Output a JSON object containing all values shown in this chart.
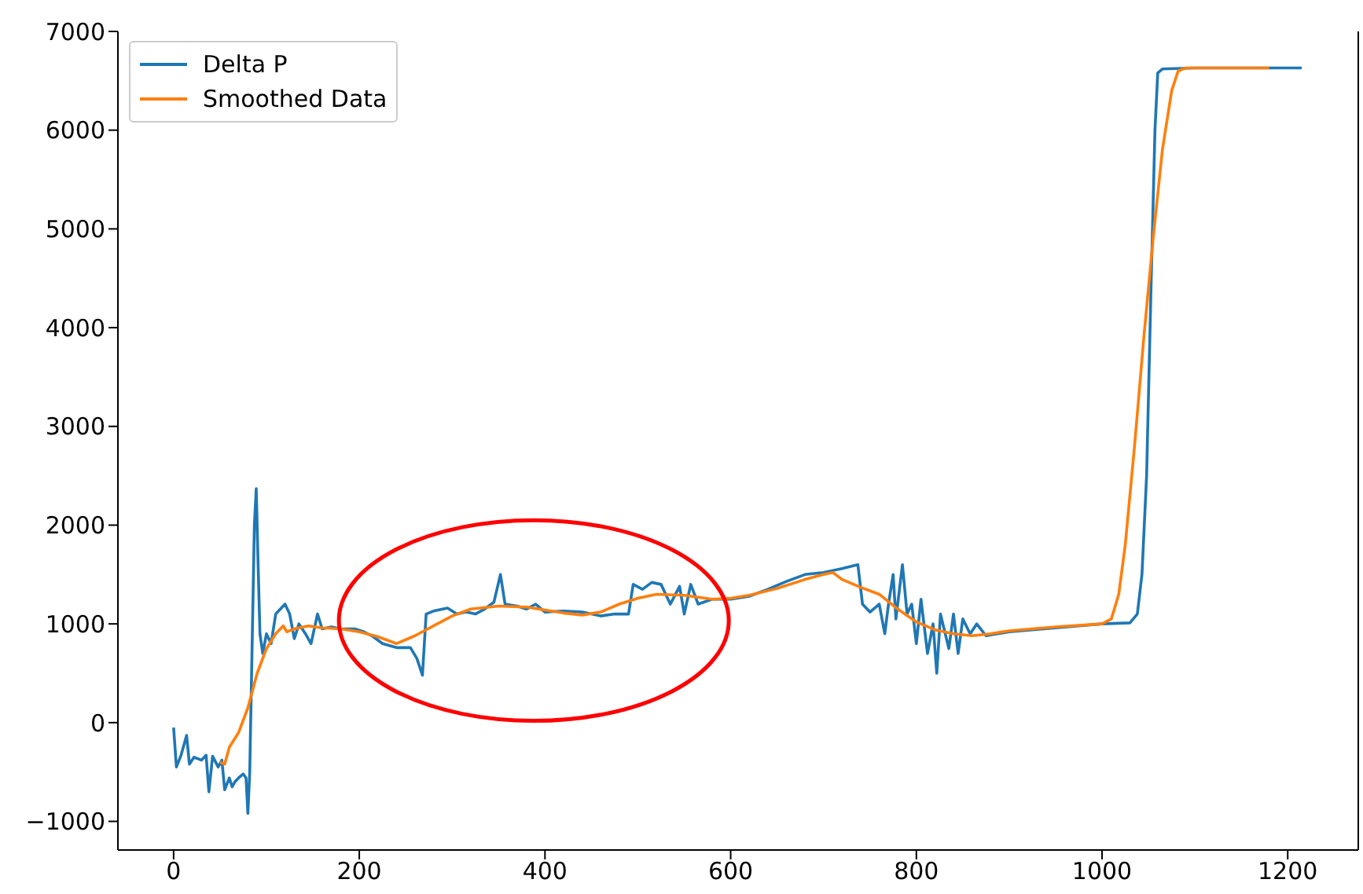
{
  "chart_data": {
    "type": "line",
    "xlim": [
      -60,
      1276
    ],
    "xticks": [
      0,
      200,
      400,
      600,
      800,
      1000,
      1200
    ],
    "ylim": [
      -1290,
      7000
    ],
    "yticks": [
      -1000,
      0,
      1000,
      2000,
      3000,
      4000,
      5000,
      6000,
      7000
    ],
    "legend": "top left",
    "marker": "none",
    "line_style": "solid",
    "series": [
      {
        "name": "Delta P",
        "color": "#1f77b4",
        "x": [
          0,
          3,
          8,
          14,
          17,
          22,
          30,
          35,
          38,
          42,
          48,
          52,
          55,
          60,
          63,
          66,
          70,
          75,
          78,
          80,
          82,
          85,
          87,
          89,
          91,
          93,
          96,
          100,
          105,
          110,
          115,
          120,
          125,
          130,
          135,
          142,
          148,
          155,
          160,
          170,
          180,
          195,
          205,
          215,
          225,
          240,
          255,
          262,
          268,
          272,
          280,
          295,
          305,
          315,
          325,
          335,
          345,
          352,
          357,
          370,
          380,
          390,
          400,
          420,
          440,
          460,
          475,
          490,
          495,
          505,
          515,
          525,
          535,
          545,
          550,
          557,
          565,
          580,
          600,
          620,
          640,
          660,
          680,
          700,
          720,
          737,
          742,
          750,
          760,
          766,
          770,
          775,
          778,
          785,
          790,
          795,
          800,
          805,
          812,
          818,
          822,
          826,
          835,
          840,
          845,
          850,
          858,
          865,
          875,
          900,
          950,
          1000,
          1030,
          1038,
          1043,
          1048,
          1053,
          1057,
          1060,
          1065,
          1100,
          1215
        ],
        "values": [
          -50,
          -450,
          -330,
          -130,
          -420,
          -350,
          -380,
          -330,
          -700,
          -340,
          -450,
          -380,
          -680,
          -560,
          -650,
          -600,
          -560,
          -520,
          -560,
          -920,
          -500,
          1000,
          2000,
          2370,
          1600,
          900,
          700,
          900,
          800,
          1100,
          1150,
          1200,
          1100,
          850,
          1000,
          900,
          800,
          1100,
          950,
          970,
          950,
          950,
          920,
          870,
          800,
          760,
          760,
          650,
          480,
          1100,
          1130,
          1160,
          1100,
          1120,
          1100,
          1150,
          1220,
          1500,
          1200,
          1180,
          1150,
          1200,
          1120,
          1130,
          1120,
          1080,
          1100,
          1100,
          1400,
          1350,
          1420,
          1400,
          1200,
          1380,
          1100,
          1400,
          1200,
          1250,
          1250,
          1280,
          1350,
          1430,
          1500,
          1520,
          1560,
          1600,
          1200,
          1120,
          1200,
          900,
          1200,
          1500,
          1050,
          1600,
          1100,
          1200,
          800,
          1250,
          700,
          1000,
          500,
          1100,
          750,
          1100,
          700,
          1050,
          900,
          1000,
          880,
          920,
          960,
          1000,
          1010,
          1100,
          1500,
          2500,
          4500,
          6000,
          6580,
          6620,
          6630,
          6630
        ]
      },
      {
        "name": "Smoothed Data",
        "color": "#ff7f0e",
        "x": [
          50,
          55,
          60,
          70,
          80,
          90,
          100,
          110,
          118,
          122,
          130,
          145,
          160,
          180,
          200,
          220,
          240,
          260,
          280,
          300,
          320,
          350,
          380,
          400,
          420,
          440,
          460,
          480,
          500,
          520,
          550,
          580,
          600,
          620,
          650,
          680,
          700,
          710,
          720,
          740,
          760,
          780,
          800,
          820,
          840,
          860,
          880,
          900,
          950,
          1000,
          1010,
          1018,
          1025,
          1035,
          1045,
          1055,
          1065,
          1075,
          1082,
          1090,
          1180
        ],
        "values": [
          -400,
          -420,
          -250,
          -100,
          150,
          500,
          750,
          900,
          980,
          920,
          950,
          980,
          960,
          950,
          920,
          870,
          800,
          880,
          980,
          1080,
          1150,
          1180,
          1170,
          1140,
          1110,
          1090,
          1120,
          1200,
          1260,
          1300,
          1290,
          1250,
          1260,
          1290,
          1360,
          1450,
          1500,
          1520,
          1450,
          1370,
          1300,
          1150,
          1020,
          940,
          900,
          880,
          900,
          930,
          970,
          1000,
          1050,
          1300,
          1800,
          2800,
          3900,
          4900,
          5800,
          6400,
          6600,
          6630,
          6630
        ]
      }
    ]
  }
}
